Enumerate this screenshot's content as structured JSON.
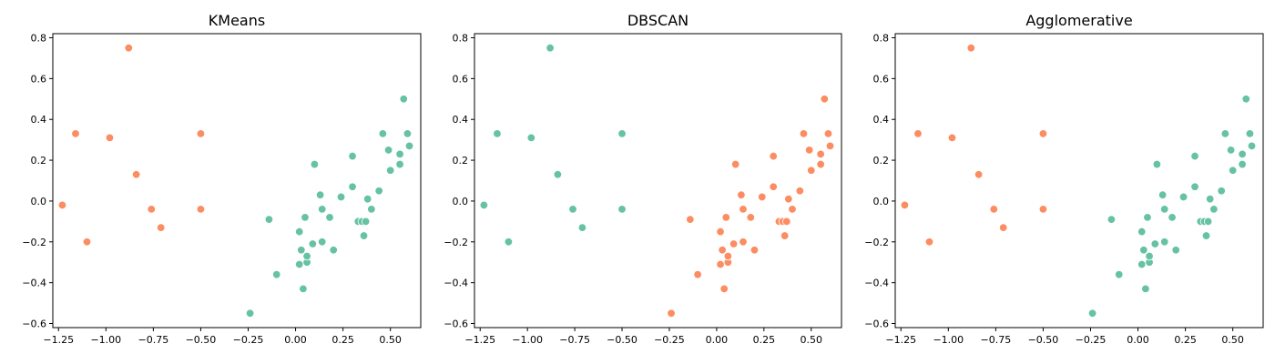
{
  "chart_data": {
    "type": "scatter",
    "colors": {
      "cluster_0": "#66c2a5",
      "cluster_1": "#fc8d62"
    },
    "xlim": [
      -1.28,
      0.66
    ],
    "ylim": [
      -0.62,
      0.82
    ],
    "x_ticks": [
      -1.25,
      -1.0,
      -0.75,
      -0.5,
      -0.25,
      0.0,
      0.25,
      0.5
    ],
    "x_tick_labels": [
      "−1.25",
      "−1.00",
      "−0.75",
      "−0.50",
      "−0.25",
      "0.00",
      "0.25",
      "0.50"
    ],
    "y_ticks": [
      -0.6,
      -0.4,
      -0.2,
      0.0,
      0.2,
      0.4,
      0.6,
      0.8
    ],
    "y_tick_labels": [
      "−0.6",
      "−0.4",
      "−0.2",
      "0.0",
      "0.2",
      "0.4",
      "0.6",
      "0.8"
    ],
    "points": [
      [
        -1.23,
        -0.02
      ],
      [
        -1.16,
        0.33
      ],
      [
        -1.1,
        -0.2
      ],
      [
        -0.98,
        0.31
      ],
      [
        -0.88,
        0.75
      ],
      [
        -0.84,
        0.13
      ],
      [
        -0.76,
        -0.04
      ],
      [
        -0.71,
        -0.13
      ],
      [
        -0.5,
        0.33
      ],
      [
        -0.5,
        -0.04
      ],
      [
        -0.24,
        -0.55
      ],
      [
        -0.14,
        -0.09
      ],
      [
        -0.1,
        -0.36
      ],
      [
        0.02,
        -0.31
      ],
      [
        0.02,
        -0.15
      ],
      [
        0.03,
        -0.24
      ],
      [
        0.04,
        -0.43
      ],
      [
        0.05,
        -0.08
      ],
      [
        0.06,
        -0.3
      ],
      [
        0.06,
        -0.27
      ],
      [
        0.09,
        -0.21
      ],
      [
        0.1,
        0.18
      ],
      [
        0.13,
        0.03
      ],
      [
        0.14,
        -0.04
      ],
      [
        0.14,
        -0.2
      ],
      [
        0.18,
        -0.08
      ],
      [
        0.2,
        -0.24
      ],
      [
        0.24,
        0.02
      ],
      [
        0.3,
        0.22
      ],
      [
        0.3,
        0.07
      ],
      [
        0.33,
        -0.1
      ],
      [
        0.35,
        -0.1
      ],
      [
        0.36,
        -0.17
      ],
      [
        0.37,
        -0.1
      ],
      [
        0.38,
        0.01
      ],
      [
        0.4,
        -0.04
      ],
      [
        0.44,
        0.05
      ],
      [
        0.46,
        0.33
      ],
      [
        0.49,
        0.25
      ],
      [
        0.5,
        0.15
      ],
      [
        0.55,
        0.23
      ],
      [
        0.55,
        0.18
      ],
      [
        0.57,
        0.5
      ],
      [
        0.59,
        0.33
      ],
      [
        0.6,
        0.27
      ]
    ],
    "subplots": [
      {
        "title": "KMeans",
        "labels": [
          1,
          1,
          1,
          1,
          1,
          1,
          1,
          1,
          1,
          1,
          0,
          0,
          0,
          0,
          0,
          0,
          0,
          0,
          0,
          0,
          0,
          0,
          0,
          0,
          0,
          0,
          0,
          0,
          0,
          0,
          0,
          0,
          0,
          0,
          0,
          0,
          0,
          0,
          0,
          0,
          0,
          0,
          0,
          0,
          0
        ]
      },
      {
        "title": "DBSCAN",
        "labels": [
          0,
          0,
          0,
          0,
          0,
          0,
          0,
          0,
          0,
          0,
          1,
          1,
          1,
          1,
          1,
          1,
          1,
          1,
          1,
          1,
          1,
          1,
          1,
          1,
          1,
          1,
          1,
          1,
          1,
          1,
          1,
          1,
          1,
          1,
          1,
          1,
          1,
          1,
          1,
          1,
          1,
          1,
          1,
          1,
          1
        ]
      },
      {
        "title": "Agglomerative",
        "labels": [
          1,
          1,
          1,
          1,
          1,
          1,
          1,
          1,
          1,
          1,
          0,
          0,
          0,
          0,
          0,
          0,
          0,
          0,
          0,
          0,
          0,
          0,
          0,
          0,
          0,
          0,
          0,
          0,
          0,
          0,
          0,
          0,
          0,
          0,
          0,
          0,
          0,
          0,
          0,
          0,
          0,
          0,
          0,
          0,
          0
        ]
      }
    ]
  }
}
